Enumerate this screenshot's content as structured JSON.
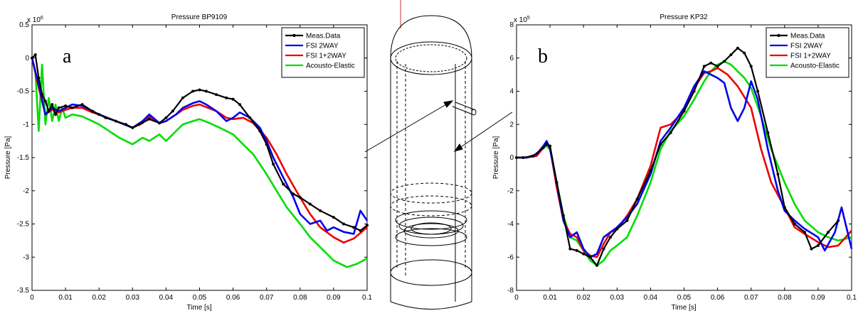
{
  "chart_data": [
    {
      "type": "line",
      "panel_letter": "a",
      "title": "Pressure BP9109",
      "xlabel": "Time [s]",
      "ylabel": "Pressure [Pa]",
      "y_exponent": "x 10",
      "y_exponent_power": "6",
      "xlim": [
        0,
        0.1
      ],
      "ylim": [
        -3.5,
        0.5
      ],
      "xticks": [
        0,
        0.01,
        0.02,
        0.03,
        0.04,
        0.05,
        0.06,
        0.07,
        0.08,
        0.09,
        0.1
      ],
      "xtick_labels": [
        "0",
        "0.01",
        "0.02",
        "0.03",
        "0.04",
        "0.05",
        "0.06",
        "0.07",
        "0.08",
        "0.09",
        "0.1"
      ],
      "yticks": [
        -3.5,
        -3,
        -2.5,
        -2,
        -1.5,
        -1,
        -0.5,
        0,
        0.5
      ],
      "ytick_labels": [
        "-3.5",
        "-3",
        "-2.5",
        "-2",
        "-1.5",
        "-1",
        "-0.5",
        "0",
        "0.5"
      ],
      "grid": false,
      "legend": "top-right",
      "series": [
        {
          "name": "Meas.Data",
          "color": "#000000",
          "marker": true,
          "x": [
            0,
            0.001,
            0.002,
            0.003,
            0.004,
            0.005,
            0.006,
            0.007,
            0.008,
            0.01,
            0.012,
            0.015,
            0.018,
            0.02,
            0.022,
            0.025,
            0.028,
            0.03,
            0.032,
            0.035,
            0.038,
            0.04,
            0.042,
            0.045,
            0.048,
            0.05,
            0.052,
            0.055,
            0.058,
            0.06,
            0.062,
            0.065,
            0.068,
            0.07,
            0.072,
            0.075,
            0.078,
            0.08,
            0.083,
            0.086,
            0.09,
            0.093,
            0.096,
            0.098,
            0.1
          ],
          "y": [
            0,
            0.05,
            -0.3,
            -0.55,
            -0.65,
            -0.8,
            -0.7,
            -0.85,
            -0.75,
            -0.72,
            -0.75,
            -0.7,
            -0.8,
            -0.85,
            -0.9,
            -0.95,
            -1.0,
            -1.05,
            -1.0,
            -0.92,
            -0.98,
            -0.9,
            -0.8,
            -0.6,
            -0.5,
            -0.48,
            -0.5,
            -0.55,
            -0.6,
            -0.62,
            -0.7,
            -0.9,
            -1.1,
            -1.3,
            -1.6,
            -1.9,
            -2.05,
            -2.1,
            -2.2,
            -2.3,
            -2.4,
            -2.5,
            -2.55,
            -2.6,
            -2.52
          ]
        },
        {
          "name": "FSI 2WAY",
          "color": "#0000ee",
          "marker": false,
          "x": [
            0,
            0.002,
            0.004,
            0.006,
            0.008,
            0.01,
            0.012,
            0.015,
            0.018,
            0.02,
            0.025,
            0.03,
            0.033,
            0.035,
            0.038,
            0.04,
            0.043,
            0.045,
            0.048,
            0.05,
            0.052,
            0.055,
            0.058,
            0.06,
            0.062,
            0.065,
            0.068,
            0.07,
            0.072,
            0.075,
            0.078,
            0.08,
            0.083,
            0.086,
            0.088,
            0.09,
            0.093,
            0.096,
            0.098,
            0.1
          ],
          "y": [
            0,
            -0.4,
            -0.85,
            -0.75,
            -0.8,
            -0.75,
            -0.7,
            -0.72,
            -0.8,
            -0.85,
            -0.95,
            -1.05,
            -0.95,
            -0.85,
            -0.98,
            -0.95,
            -0.85,
            -0.75,
            -0.68,
            -0.65,
            -0.7,
            -0.8,
            -0.95,
            -0.9,
            -0.82,
            -0.9,
            -1.05,
            -1.25,
            -1.5,
            -1.8,
            -2.1,
            -2.35,
            -2.5,
            -2.45,
            -2.6,
            -2.55,
            -2.62,
            -2.65,
            -2.3,
            -2.45
          ]
        },
        {
          "name": "FSI 1+2WAY",
          "color": "#ee0000",
          "marker": false,
          "x": [
            0,
            0.002,
            0.004,
            0.006,
            0.008,
            0.01,
            0.012,
            0.015,
            0.018,
            0.02,
            0.025,
            0.03,
            0.033,
            0.035,
            0.038,
            0.04,
            0.043,
            0.045,
            0.048,
            0.05,
            0.052,
            0.055,
            0.058,
            0.06,
            0.063,
            0.066,
            0.07,
            0.073,
            0.076,
            0.08,
            0.083,
            0.086,
            0.09,
            0.093,
            0.096,
            0.1
          ],
          "y": [
            0,
            -0.45,
            -0.85,
            -0.78,
            -0.82,
            -0.78,
            -0.75,
            -0.75,
            -0.82,
            -0.85,
            -0.95,
            -1.05,
            -0.98,
            -0.88,
            -0.98,
            -0.95,
            -0.85,
            -0.78,
            -0.72,
            -0.7,
            -0.74,
            -0.8,
            -0.9,
            -0.92,
            -0.9,
            -0.98,
            -1.2,
            -1.45,
            -1.75,
            -2.1,
            -2.35,
            -2.55,
            -2.7,
            -2.78,
            -2.72,
            -2.55
          ]
        },
        {
          "name": "Acousto-Elastic",
          "color": "#00dd00",
          "marker": false,
          "x": [
            0,
            0.001,
            0.002,
            0.003,
            0.004,
            0.005,
            0.006,
            0.007,
            0.008,
            0.009,
            0.01,
            0.012,
            0.015,
            0.018,
            0.02,
            0.023,
            0.026,
            0.03,
            0.033,
            0.035,
            0.038,
            0.04,
            0.043,
            0.045,
            0.048,
            0.05,
            0.053,
            0.056,
            0.06,
            0.063,
            0.066,
            0.07,
            0.073,
            0.076,
            0.08,
            0.083,
            0.086,
            0.09,
            0.094,
            0.097,
            0.1
          ],
          "y": [
            0,
            -0.2,
            -1.1,
            -0.1,
            -1.0,
            -0.6,
            -0.95,
            -0.7,
            -0.95,
            -0.75,
            -0.9,
            -0.85,
            -0.88,
            -0.95,
            -1.0,
            -1.1,
            -1.2,
            -1.3,
            -1.2,
            -1.25,
            -1.15,
            -1.25,
            -1.1,
            -1.0,
            -0.95,
            -0.92,
            -0.98,
            -1.05,
            -1.15,
            -1.3,
            -1.45,
            -1.75,
            -2.0,
            -2.25,
            -2.5,
            -2.7,
            -2.85,
            -3.05,
            -3.15,
            -3.1,
            -3.02
          ]
        }
      ]
    },
    {
      "type": "line",
      "panel_letter": "b",
      "title": "Pressure KP32",
      "xlabel": "Time [s]",
      "ylabel": "Pressure [Pa]",
      "y_exponent": "x 10",
      "y_exponent_power": "5",
      "xlim": [
        0,
        0.1
      ],
      "ylim": [
        -8,
        8
      ],
      "xticks": [
        0,
        0.01,
        0.02,
        0.03,
        0.04,
        0.05,
        0.06,
        0.07,
        0.08,
        0.09,
        0.1
      ],
      "xtick_labels": [
        "0",
        "0.01",
        "0.02",
        "0.03",
        "0.04",
        "0.05",
        "0.06",
        "0.07",
        "0.08",
        "0.09",
        "0.1"
      ],
      "yticks": [
        -8,
        -6,
        -4,
        -2,
        0,
        2,
        4,
        6,
        8
      ],
      "ytick_labels": [
        "-8",
        "-6",
        "-4",
        "-2",
        "0",
        "2",
        "4",
        "6",
        "8"
      ],
      "grid": false,
      "legend": "top-right",
      "series": [
        {
          "name": "Meas.Data",
          "color": "#000000",
          "marker": true,
          "x": [
            0,
            0.002,
            0.005,
            0.008,
            0.009,
            0.01,
            0.012,
            0.014,
            0.016,
            0.018,
            0.02,
            0.022,
            0.024,
            0.026,
            0.028,
            0.03,
            0.033,
            0.036,
            0.04,
            0.043,
            0.046,
            0.05,
            0.053,
            0.056,
            0.058,
            0.06,
            0.062,
            0.064,
            0.066,
            0.068,
            0.07,
            0.072,
            0.075,
            0.078,
            0.08,
            0.083,
            0.086,
            0.088,
            0.09,
            0.093,
            0.096
          ],
          "y": [
            0,
            0,
            0.1,
            0.6,
            0.8,
            0.7,
            -1.5,
            -3.5,
            -5.5,
            -5.6,
            -5.8,
            -6.0,
            -6.5,
            -5.5,
            -4.8,
            -4.3,
            -3.8,
            -2.5,
            -0.8,
            0.8,
            1.5,
            2.8,
            4.0,
            5.5,
            5.7,
            5.5,
            5.8,
            6.2,
            6.6,
            6.3,
            5.5,
            4.0,
            1.5,
            -1.0,
            -3.0,
            -4.0,
            -4.5,
            -5.5,
            -5.3,
            -4.5,
            -3.8
          ]
        },
        {
          "name": "FSI 2WAY",
          "color": "#0000ee",
          "marker": false,
          "x": [
            0,
            0.003,
            0.006,
            0.008,
            0.009,
            0.01,
            0.012,
            0.014,
            0.016,
            0.018,
            0.02,
            0.022,
            0.024,
            0.026,
            0.028,
            0.03,
            0.033,
            0.036,
            0.04,
            0.043,
            0.046,
            0.05,
            0.053,
            0.056,
            0.058,
            0.06,
            0.062,
            0.064,
            0.066,
            0.068,
            0.07,
            0.072,
            0.075,
            0.078,
            0.08,
            0.083,
            0.086,
            0.09,
            0.092,
            0.095,
            0.097,
            0.1
          ],
          "y": [
            0,
            0,
            0.2,
            0.7,
            1.0,
            0.5,
            -1.5,
            -3.8,
            -4.8,
            -4.5,
            -5.5,
            -6.0,
            -5.8,
            -4.8,
            -4.5,
            -4.2,
            -3.6,
            -2.8,
            -1.0,
            1.0,
            1.8,
            3.0,
            4.3,
            5.2,
            5.0,
            4.8,
            4.5,
            3.0,
            2.2,
            3.0,
            4.6,
            3.5,
            0.5,
            -2.0,
            -3.2,
            -3.8,
            -4.3,
            -4.8,
            -5.6,
            -4.5,
            -3.0,
            -5.5
          ]
        },
        {
          "name": "FSI 1+2WAY",
          "color": "#ee0000",
          "marker": false,
          "x": [
            0,
            0.003,
            0.006,
            0.008,
            0.009,
            0.01,
            0.012,
            0.014,
            0.016,
            0.018,
            0.02,
            0.022,
            0.024,
            0.026,
            0.028,
            0.03,
            0.033,
            0.036,
            0.04,
            0.043,
            0.046,
            0.05,
            0.053,
            0.056,
            0.058,
            0.06,
            0.063,
            0.066,
            0.07,
            0.073,
            0.076,
            0.08,
            0.083,
            0.086,
            0.09,
            0.093,
            0.096,
            0.1
          ],
          "y": [
            0,
            0,
            0.1,
            0.6,
            0.9,
            0.6,
            -1.8,
            -3.8,
            -4.6,
            -4.8,
            -5.6,
            -5.9,
            -6.0,
            -5.2,
            -4.5,
            -4.3,
            -3.5,
            -2.5,
            -0.5,
            1.8,
            2.0,
            2.8,
            4.2,
            5.1,
            5.2,
            5.4,
            5.0,
            4.3,
            3.0,
            0.5,
            -1.5,
            -3.0,
            -4.2,
            -4.6,
            -5.1,
            -5.4,
            -5.3,
            -4.4
          ]
        },
        {
          "name": "Acousto-Elastic",
          "color": "#00dd00",
          "marker": false,
          "x": [
            0,
            0.003,
            0.006,
            0.008,
            0.009,
            0.01,
            0.012,
            0.014,
            0.016,
            0.018,
            0.02,
            0.022,
            0.024,
            0.026,
            0.028,
            0.03,
            0.033,
            0.036,
            0.04,
            0.043,
            0.046,
            0.05,
            0.053,
            0.056,
            0.058,
            0.06,
            0.062,
            0.064,
            0.066,
            0.068,
            0.07,
            0.073,
            0.076,
            0.08,
            0.083,
            0.086,
            0.09,
            0.093,
            0.096,
            0.1
          ],
          "y": [
            0,
            0,
            0.2,
            0.6,
            0.7,
            0.5,
            -1.5,
            -3.5,
            -4.8,
            -5.0,
            -5.6,
            -6.2,
            -6.5,
            -6.2,
            -5.6,
            -5.3,
            -4.8,
            -3.5,
            -1.5,
            0.5,
            1.6,
            2.5,
            3.5,
            4.6,
            5.2,
            5.6,
            5.8,
            5.6,
            5.2,
            4.8,
            4.2,
            2.5,
            0.5,
            -1.5,
            -2.8,
            -3.8,
            -4.5,
            -4.8,
            -5.0,
            -4.8
          ]
        }
      ]
    }
  ],
  "diagram": {
    "marker_color": "#cc3333"
  }
}
